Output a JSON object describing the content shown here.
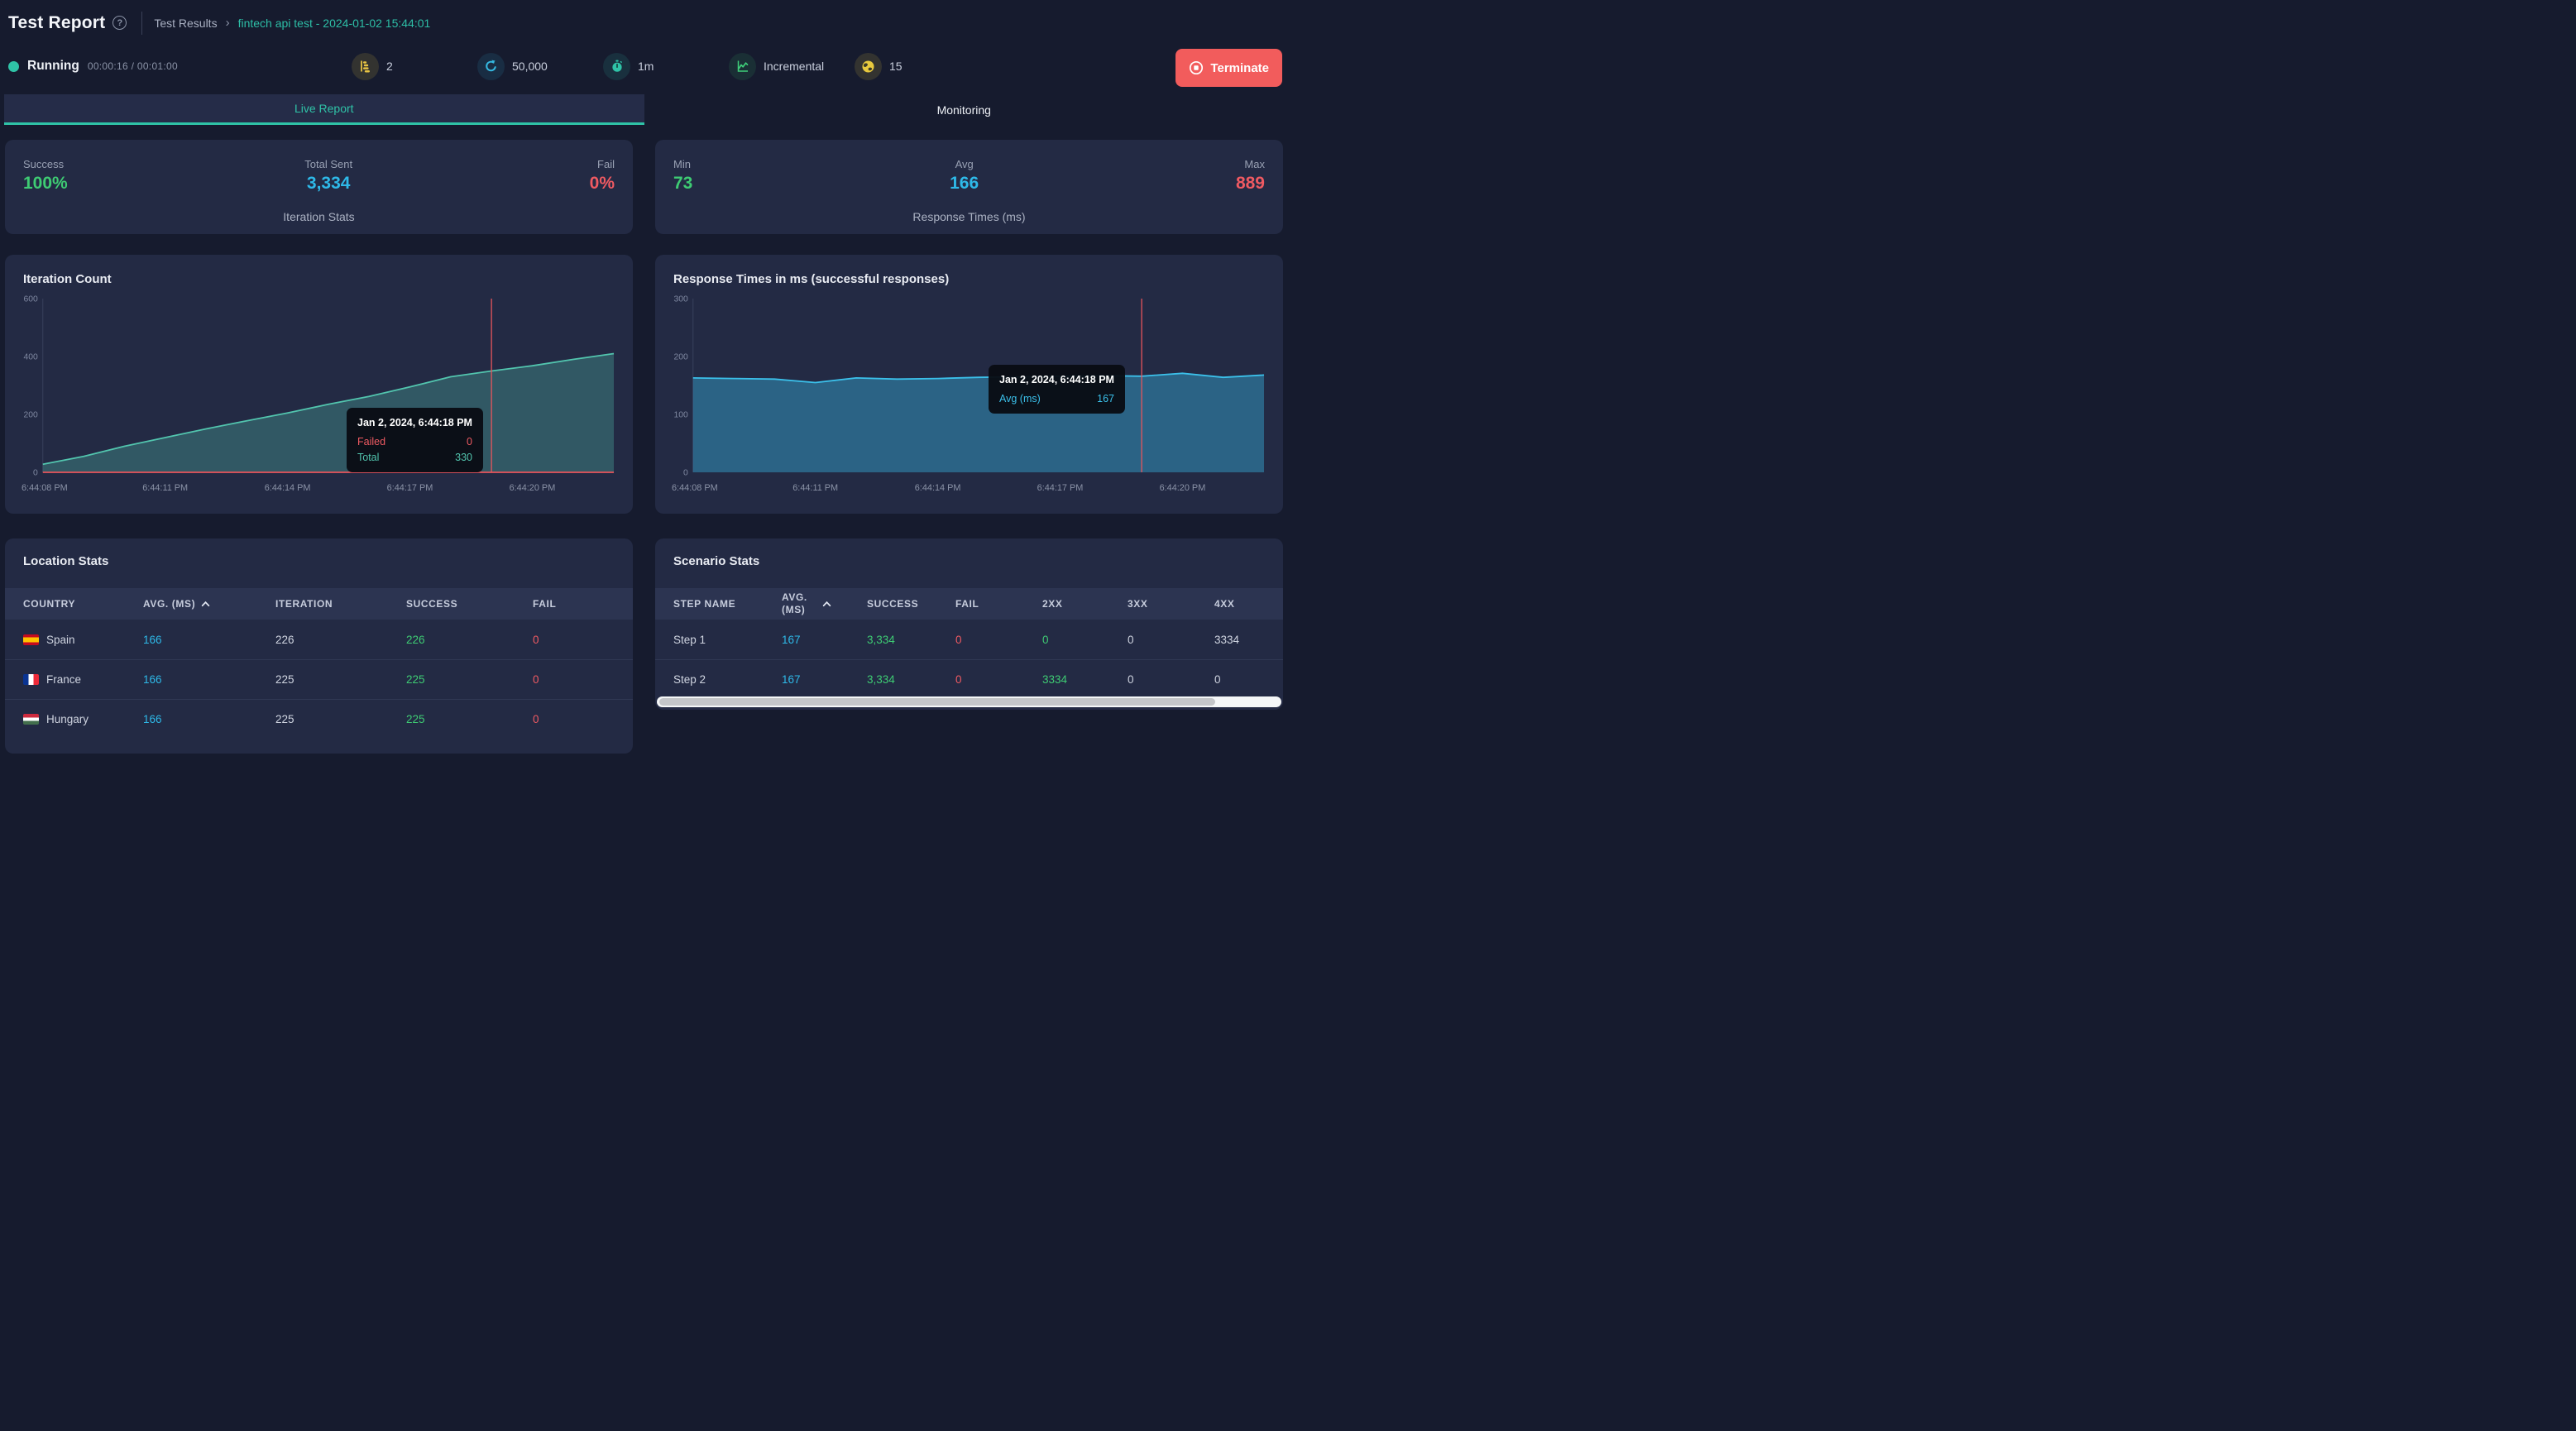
{
  "header": {
    "title": "Test Report",
    "help_icon": "question-circle-icon",
    "breadcrumb": {
      "root": "Test Results",
      "separator": "›",
      "current": "fintech api test - 2024-01-02 15:44:01"
    }
  },
  "status_bar": {
    "state_label": "Running",
    "state_color": "#2fc3a7",
    "time_display": "00:00:16 / 00:01:00",
    "metrics": [
      {
        "icon": "steps-icon",
        "value": "2"
      },
      {
        "icon": "refresh-icon",
        "value": "50,000"
      },
      {
        "icon": "stopwatch-icon",
        "value": "1m"
      },
      {
        "icon": "trend-chart-icon",
        "value": "Incremental"
      },
      {
        "icon": "globe-icon",
        "value": "15"
      }
    ],
    "terminate_label": "Terminate",
    "terminate_color": "#f25c5c"
  },
  "tabs": [
    {
      "label": "Live Report",
      "active": true
    },
    {
      "label": "Monitoring",
      "active": false
    }
  ],
  "summary_cards": [
    {
      "stats": [
        {
          "label": "Success",
          "value": "100%",
          "color": "#3ecb73"
        },
        {
          "label": "Total Sent",
          "value": "3,334",
          "color": "#2eb9e8"
        },
        {
          "label": "Fail",
          "value": "0%",
          "color": "#ef5a62"
        }
      ],
      "footer": "Iteration Stats"
    },
    {
      "stats": [
        {
          "label": "Min",
          "value": "73",
          "color": "#3ecb73"
        },
        {
          "label": "Avg",
          "value": "166",
          "color": "#2eb9e8"
        },
        {
          "label": "Max",
          "value": "889",
          "color": "#ef5a62"
        }
      ],
      "footer": "Response Times (ms)"
    }
  ],
  "chart_data": [
    {
      "type": "area",
      "title": "Iteration Count",
      "x_tick_labels": [
        "6:44:08 PM",
        "6:44:11 PM",
        "6:44:14 PM",
        "6:44:17 PM",
        "6:44:20 PM"
      ],
      "x_tick_indices": [
        0,
        3,
        6,
        9,
        12
      ],
      "y_ticks": [
        0,
        200,
        400,
        600
      ],
      "ylim": [
        0,
        600
      ],
      "grid": false,
      "series": [
        {
          "name": "Total",
          "color": "#52c5ae",
          "fill": "rgba(82,197,174,0.3)",
          "values": [
            28,
            55,
            90,
            120,
            150,
            178,
            205,
            235,
            262,
            295,
            330,
            350,
            368,
            390,
            410
          ]
        },
        {
          "name": "Failed",
          "color": "#e8555c",
          "fill": null,
          "values": [
            0,
            0,
            0,
            0,
            0,
            0,
            0,
            0,
            0,
            0,
            0,
            0,
            0,
            0,
            0
          ]
        }
      ],
      "crosshair_index": 11,
      "crosshair_color": "#e8555c",
      "tooltip": {
        "title": "Jan 2, 2024, 6:44:18 PM",
        "rows": [
          {
            "label": "Failed",
            "value": "0",
            "color": "#ef5a62"
          },
          {
            "label": "Total",
            "value": "330",
            "color": "#52c5ae"
          }
        ]
      }
    },
    {
      "type": "area",
      "title": "Response Times in ms (successful responses)",
      "x_tick_labels": [
        "6:44:08 PM",
        "6:44:11 PM",
        "6:44:14 PM",
        "6:44:17 PM",
        "6:44:20 PM"
      ],
      "x_tick_indices": [
        0,
        3,
        6,
        9,
        12
      ],
      "y_ticks": [
        0,
        100,
        200,
        300
      ],
      "ylim": [
        0,
        300
      ],
      "grid": false,
      "series": [
        {
          "name": "Avg (ms)",
          "color": "#3bc0ea",
          "fill": "rgba(56,178,224,0.42)",
          "values": [
            163,
            162,
            161,
            155,
            163,
            161,
            162,
            164,
            165,
            166,
            167,
            166,
            171,
            164,
            168
          ]
        }
      ],
      "crosshair_index": 11,
      "crosshair_color": "#e8555c",
      "tooltip": {
        "title": "Jan 2, 2024, 6:44:18 PM",
        "rows": [
          {
            "label": "Avg (ms)",
            "value": "167",
            "color": "#3bc0ea"
          }
        ]
      }
    }
  ],
  "location_stats": {
    "title": "Location Stats",
    "headers": [
      {
        "label": "COUNTRY"
      },
      {
        "label": "AVG. (MS)",
        "sorted": true
      },
      {
        "label": "ITERATION"
      },
      {
        "label": "SUCCESS"
      },
      {
        "label": "FAIL"
      }
    ],
    "rows": [
      {
        "flag": "spain",
        "country": "Spain",
        "avg": "166",
        "iteration": "226",
        "success": "226",
        "fail": "0"
      },
      {
        "flag": "france",
        "country": "France",
        "avg": "166",
        "iteration": "225",
        "success": "225",
        "fail": "0"
      },
      {
        "flag": "hungary",
        "country": "Hungary",
        "avg": "166",
        "iteration": "225",
        "success": "225",
        "fail": "0"
      }
    ]
  },
  "scenario_stats": {
    "title": "Scenario Stats",
    "headers": [
      {
        "label": "STEP NAME"
      },
      {
        "label": "AVG. (MS)",
        "sorted": true,
        "wrap": true
      },
      {
        "label": "SUCCESS"
      },
      {
        "label": "FAIL"
      },
      {
        "label": "2XX"
      },
      {
        "label": "3XX"
      },
      {
        "label": "4XX"
      }
    ],
    "rows": [
      {
        "step": "Step 1",
        "avg": "167",
        "success": "3,334",
        "fail": "0",
        "xx2": "0",
        "xx3": "0",
        "xx4": "3334"
      },
      {
        "step": "Step 2",
        "avg": "167",
        "success": "3,334",
        "fail": "0",
        "xx2": "3334",
        "xx3": "0",
        "xx4": "0"
      }
    ]
  }
}
